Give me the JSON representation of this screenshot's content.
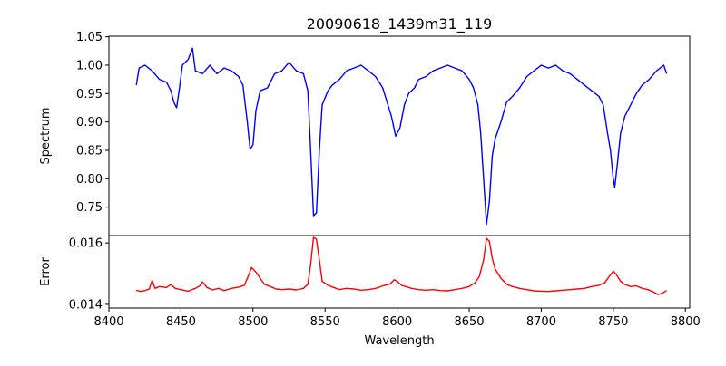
{
  "chart_data": [
    {
      "type": "line",
      "title": "20090618_1439m31_119",
      "ylabel": "Spectrum",
      "xlabel": "",
      "xlim": [
        8400,
        8803
      ],
      "ylim": [
        0.7,
        1.051
      ],
      "yticks": [
        0.75,
        0.8,
        0.85,
        0.9,
        0.95,
        1.0,
        1.05
      ],
      "ytick_labels": [
        "0.75",
        "0.80",
        "0.85",
        "0.90",
        "0.95",
        "1.00",
        "1.05"
      ],
      "color": "#0000ff",
      "x": [
        8419,
        8421,
        8425,
        8430,
        8435,
        8440,
        8443,
        8445,
        8447,
        8449,
        8451,
        8453,
        8455,
        8458,
        8460,
        8465,
        8470,
        8475,
        8480,
        8485,
        8490,
        8493,
        8496,
        8498,
        8500,
        8502,
        8505,
        8510,
        8515,
        8520,
        8525,
        8530,
        8535,
        8538,
        8540,
        8542,
        8544,
        8546,
        8548,
        8552,
        8555,
        8560,
        8565,
        8570,
        8575,
        8580,
        8585,
        8590,
        8593,
        8596,
        8599,
        8602,
        8605,
        8608,
        8612,
        8615,
        8620,
        8625,
        8630,
        8635,
        8640,
        8645,
        8650,
        8653,
        8656,
        8658,
        8660,
        8662,
        8664,
        8666,
        8668,
        8672,
        8676,
        8680,
        8685,
        8690,
        8695,
        8700,
        8705,
        8710,
        8715,
        8720,
        8725,
        8730,
        8735,
        8740,
        8743,
        8746,
        8748,
        8750,
        8751,
        8753,
        8755,
        8758,
        8762,
        8766,
        8770,
        8775,
        8780,
        8785,
        8787
      ],
      "y": [
        0.965,
        0.995,
        1.0,
        0.99,
        0.975,
        0.97,
        0.955,
        0.935,
        0.925,
        0.96,
        1.0,
        1.005,
        1.01,
        1.03,
        0.99,
        0.985,
        1.0,
        0.985,
        0.995,
        0.99,
        0.98,
        0.965,
        0.9,
        0.852,
        0.86,
        0.92,
        0.955,
        0.96,
        0.985,
        0.99,
        1.005,
        0.99,
        0.985,
        0.955,
        0.85,
        0.735,
        0.74,
        0.85,
        0.93,
        0.955,
        0.965,
        0.975,
        0.99,
        0.995,
        1.0,
        0.99,
        0.98,
        0.96,
        0.935,
        0.91,
        0.875,
        0.89,
        0.93,
        0.95,
        0.96,
        0.975,
        0.98,
        0.99,
        0.995,
        1.0,
        0.995,
        0.99,
        0.975,
        0.96,
        0.93,
        0.88,
        0.8,
        0.72,
        0.76,
        0.84,
        0.87,
        0.9,
        0.935,
        0.945,
        0.96,
        0.98,
        0.99,
        1.0,
        0.995,
        1.0,
        0.99,
        0.985,
        0.975,
        0.965,
        0.955,
        0.945,
        0.93,
        0.88,
        0.85,
        0.8,
        0.785,
        0.83,
        0.88,
        0.91,
        0.93,
        0.95,
        0.965,
        0.975,
        0.99,
        1.0,
        0.985
      ]
    },
    {
      "type": "line",
      "title": "",
      "ylabel": "Error",
      "xlabel": "Wavelength",
      "xlim": [
        8400,
        8803
      ],
      "ylim": [
        0.01388,
        0.01624
      ],
      "yticks": [
        0.014,
        0.016
      ],
      "ytick_labels": [
        "0.014",
        "0.016"
      ],
      "xticks": [
        8400,
        8450,
        8500,
        8550,
        8600,
        8650,
        8700,
        8750,
        8800
      ],
      "xtick_labels": [
        "8400",
        "8450",
        "8500",
        "8550",
        "8600",
        "8650",
        "8700",
        "8750",
        "8800"
      ],
      "color": "#ff0000",
      "x": [
        8419,
        8422,
        8425,
        8428,
        8430,
        8432,
        8435,
        8440,
        8443,
        8446,
        8450,
        8455,
        8460,
        8463,
        8465,
        8468,
        8472,
        8476,
        8480,
        8485,
        8490,
        8494,
        8497,
        8499,
        8502,
        8505,
        8508,
        8512,
        8516,
        8520,
        8525,
        8530,
        8535,
        8538,
        8540,
        8542,
        8544,
        8546,
        8548,
        8552,
        8556,
        8560,
        8565,
        8570,
        8575,
        8580,
        8585,
        8590,
        8595,
        8598,
        8600,
        8603,
        8606,
        8610,
        8615,
        8620,
        8625,
        8630,
        8635,
        8640,
        8645,
        8650,
        8654,
        8657,
        8660,
        8662,
        8664,
        8666,
        8668,
        8672,
        8676,
        8680,
        8685,
        8690,
        8695,
        8700,
        8705,
        8710,
        8715,
        8720,
        8725,
        8730,
        8735,
        8740,
        8744,
        8747,
        8750,
        8752,
        8755,
        8758,
        8762,
        8766,
        8770,
        8774,
        8778,
        8781,
        8784,
        8787
      ],
      "y": [
        0.01446,
        0.01442,
        0.01445,
        0.0145,
        0.01478,
        0.01452,
        0.01458,
        0.01455,
        0.01465,
        0.01452,
        0.01448,
        0.01443,
        0.01452,
        0.0146,
        0.01473,
        0.01455,
        0.01447,
        0.01452,
        0.01445,
        0.01452,
        0.01456,
        0.01462,
        0.01495,
        0.0152,
        0.01505,
        0.01485,
        0.01465,
        0.01458,
        0.0145,
        0.01448,
        0.0145,
        0.01447,
        0.01452,
        0.01465,
        0.0153,
        0.01618,
        0.01612,
        0.01545,
        0.01475,
        0.01462,
        0.01455,
        0.01448,
        0.01452,
        0.0145,
        0.01446,
        0.01448,
        0.01452,
        0.0146,
        0.01466,
        0.0148,
        0.01475,
        0.01462,
        0.01458,
        0.01452,
        0.01448,
        0.01446,
        0.01448,
        0.01445,
        0.01444,
        0.01448,
        0.01452,
        0.01458,
        0.0147,
        0.0149,
        0.01545,
        0.01615,
        0.01605,
        0.0155,
        0.01515,
        0.01485,
        0.01465,
        0.01458,
        0.01452,
        0.01448,
        0.01444,
        0.01443,
        0.01442,
        0.01444,
        0.01446,
        0.01448,
        0.0145,
        0.01452,
        0.01458,
        0.01462,
        0.0147,
        0.0149,
        0.01508,
        0.01498,
        0.01475,
        0.01465,
        0.01458,
        0.0146,
        0.01452,
        0.01448,
        0.0144,
        0.01432,
        0.01436,
        0.01445
      ]
    }
  ]
}
